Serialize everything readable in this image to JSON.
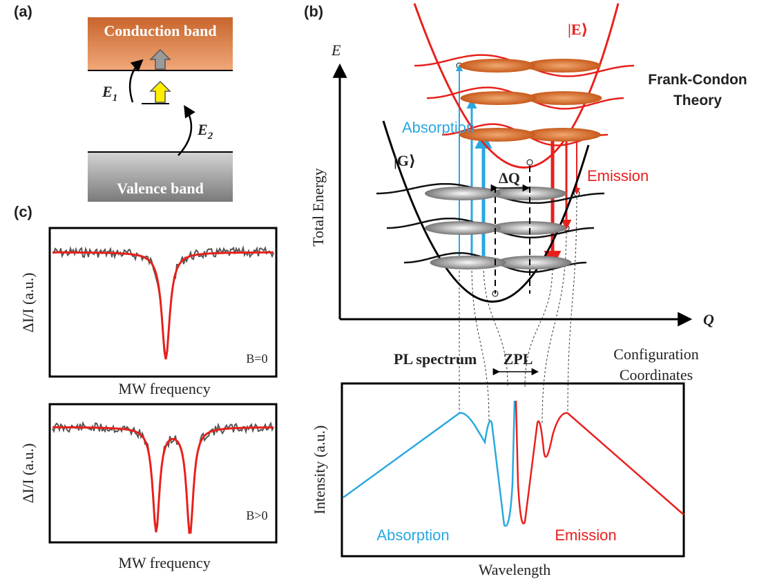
{
  "panel_a": {
    "label": "(a)",
    "conduction_band": "Conduction band",
    "valence_band": "Valence band",
    "e1": {
      "symbol": "E",
      "subscript": "1"
    },
    "e2": {
      "symbol": "E",
      "subscript": "2"
    }
  },
  "panel_b": {
    "label": "(b)",
    "excited_state": "|E⟩",
    "theory": [
      "Frank-Condon",
      "Theory"
    ],
    "energy_axis_symbol": "E",
    "energy_axis_label": "Total Energy",
    "absorption": "Absorption",
    "ground_state": "|G⟩",
    "delta_q": "ΔQ",
    "emission": "Emission",
    "q_axis_symbol": "Q",
    "q_axis_label": [
      "Configuration",
      "Coordinates"
    ],
    "spectrum_title": "PL spectrum",
    "zpl": "ZPL",
    "spectrum_y_label": "Intensity (a.u.)",
    "spectrum_absorption": "Absorption",
    "spectrum_emission": "Emission",
    "spectrum_x_label": "Wavelength"
  },
  "panel_c": {
    "label": "(c)",
    "plots": [
      {
        "y_label": "ΔI/I (a.u.)",
        "field": "B=0",
        "x_label": "MW frequency"
      },
      {
        "y_label": "ΔI/I (a.u.)",
        "field": "B>0",
        "x_label": "MW frequency"
      }
    ]
  }
}
